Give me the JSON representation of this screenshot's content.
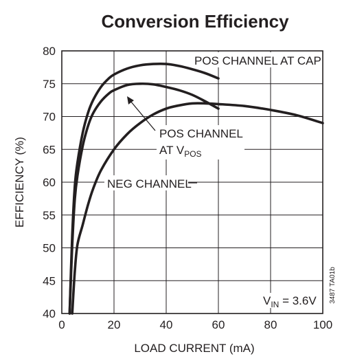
{
  "chart_data": {
    "type": "line",
    "title": "Conversion Efficiency",
    "xlabel": "LOAD CURRENT (mA)",
    "ylabel": "EFFICIENCY (%)",
    "xlim": [
      0,
      100
    ],
    "ylim": [
      40,
      80
    ],
    "x_ticks": [
      "0",
      "20",
      "40",
      "60",
      "80",
      "100"
    ],
    "y_ticks": [
      "40",
      "45",
      "50",
      "55",
      "60",
      "65",
      "70",
      "75",
      "80"
    ],
    "grid": true,
    "series": [
      {
        "name": "POS CHANNEL AT CAP",
        "x": [
          3,
          4,
          5,
          6,
          8,
          10,
          12,
          15,
          18,
          20,
          25,
          30,
          35,
          40,
          45,
          50,
          55,
          60
        ],
        "y": [
          40,
          52,
          59.5,
          63,
          67.5,
          70.5,
          72.5,
          74.5,
          75.8,
          76.4,
          77.3,
          77.8,
          78,
          78,
          77.7,
          77.2,
          76.6,
          75.8
        ]
      },
      {
        "name": "POS CHANNEL AT V_POS",
        "x": [
          3,
          4,
          5,
          6,
          8,
          10,
          12,
          15,
          18,
          20,
          25,
          30,
          35,
          40,
          45,
          50,
          55,
          60
        ],
        "y": [
          40,
          50.5,
          57.5,
          61,
          65.5,
          68.5,
          70.5,
          72.3,
          73.5,
          74,
          74.8,
          75,
          74.9,
          74.5,
          74,
          73.3,
          72.3,
          71.2
        ]
      },
      {
        "name": "NEG CHANNEL",
        "x": [
          4,
          5,
          6,
          8,
          10,
          12,
          15,
          20,
          25,
          30,
          35,
          40,
          45,
          50,
          55,
          60,
          70,
          80,
          90,
          100
        ],
        "y": [
          40,
          46.5,
          50.5,
          53.5,
          56.5,
          59,
          61.8,
          65,
          67.3,
          69,
          70.3,
          71.2,
          71.7,
          72,
          72,
          71.9,
          71.6,
          71,
          70.2,
          69
        ]
      }
    ],
    "annotations": {
      "pos_cap": "POS CHANNEL AT CAP",
      "pos_vpos_line1": "POS CHANNEL",
      "pos_vpos_line2_main": "AT V",
      "pos_vpos_line2_sub": "POS",
      "neg": "NEG CHANNEL",
      "vin_main": "V",
      "vin_sub": "IN",
      "vin_rest": " = 3.6V",
      "figure_id": "3487 TA01b"
    }
  }
}
